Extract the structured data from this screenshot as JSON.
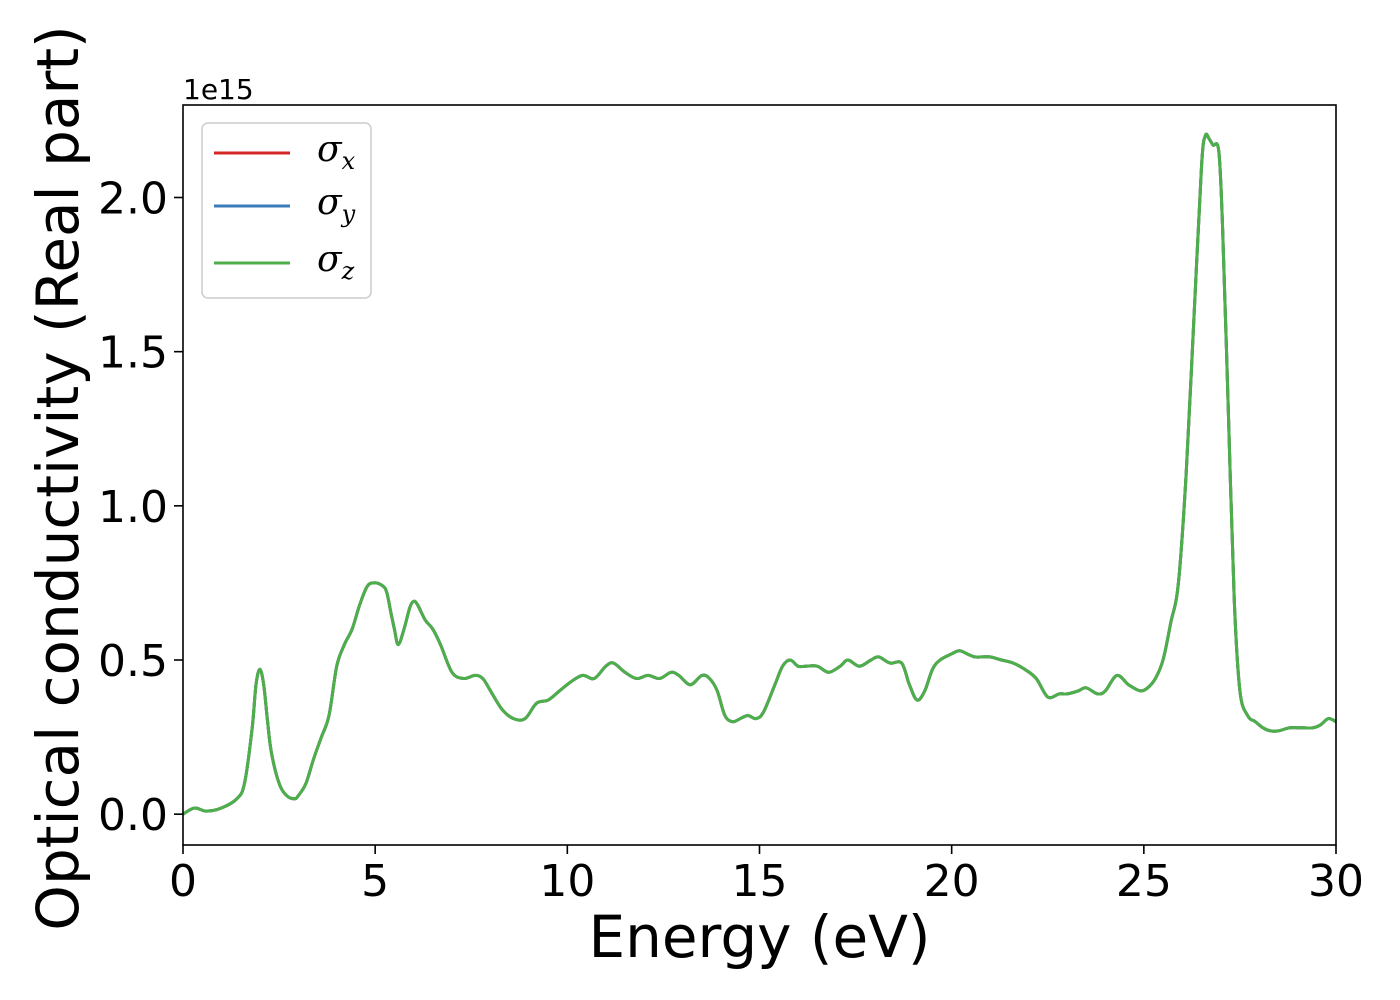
{
  "chart_data": {
    "type": "line",
    "title": "",
    "xlabel": "Energy (eV)",
    "ylabel": "Optical conductivity (Real part)",
    "y_offset_label": "1e15",
    "y_scale_factor": 1000000000000000.0,
    "xlim": [
      0,
      30
    ],
    "ylim": [
      -0.1,
      2.3
    ],
    "xticks": [
      0,
      5,
      10,
      15,
      20,
      25,
      30
    ],
    "xtick_labels": [
      "0",
      "5",
      "10",
      "15",
      "20",
      "25",
      "30"
    ],
    "yticks": [
      0.0,
      0.5,
      1.0,
      1.5,
      2.0
    ],
    "ytick_labels": [
      "0.0",
      "0.5",
      "1.0",
      "1.5",
      "2.0"
    ],
    "grid": false,
    "legend_position": "top-left",
    "x": [
      0,
      0.3,
      0.6,
      1.0,
      1.4,
      1.6,
      1.8,
      1.9,
      2.0,
      2.1,
      2.2,
      2.3,
      2.5,
      2.7,
      2.9,
      3.0,
      3.2,
      3.4,
      3.6,
      3.8,
      4.0,
      4.2,
      4.4,
      4.6,
      4.8,
      5.0,
      5.2,
      5.3,
      5.4,
      5.5,
      5.6,
      5.75,
      5.9,
      6.0,
      6.1,
      6.3,
      6.5,
      6.7,
      7.0,
      7.3,
      7.6,
      7.8,
      8.0,
      8.3,
      8.6,
      8.9,
      9.2,
      9.5,
      9.8,
      10.1,
      10.4,
      10.7,
      11.0,
      11.2,
      11.5,
      11.8,
      12.1,
      12.4,
      12.7,
      12.9,
      13.2,
      13.5,
      13.7,
      13.9,
      14.1,
      14.3,
      14.5,
      14.7,
      14.9,
      15.1,
      15.4,
      15.6,
      15.8,
      16.0,
      16.2,
      16.5,
      16.8,
      17.1,
      17.3,
      17.6,
      17.9,
      18.1,
      18.4,
      18.7,
      18.9,
      19.1,
      19.3,
      19.5,
      19.7,
      20.0,
      20.2,
      20.4,
      20.6,
      20.8,
      21.0,
      21.3,
      21.6,
      21.9,
      22.2,
      22.5,
      22.8,
      23.0,
      23.3,
      23.5,
      23.8,
      24.0,
      24.3,
      24.6,
      24.9,
      25.1,
      25.3,
      25.5,
      25.7,
      25.9,
      26.1,
      26.3,
      26.5,
      26.6,
      26.7,
      26.8,
      26.95,
      27.05,
      27.2,
      27.35,
      27.5,
      27.7,
      27.9,
      28.1,
      28.3,
      28.5,
      28.8,
      29.1,
      29.4,
      29.6,
      29.8,
      30.0
    ],
    "series": [
      {
        "name": "σx",
        "color": "#d62728",
        "values": [
          0.0,
          0.02,
          0.01,
          0.02,
          0.05,
          0.1,
          0.28,
          0.42,
          0.47,
          0.42,
          0.3,
          0.2,
          0.1,
          0.06,
          0.05,
          0.06,
          0.1,
          0.18,
          0.25,
          0.32,
          0.48,
          0.55,
          0.6,
          0.68,
          0.74,
          0.75,
          0.74,
          0.72,
          0.66,
          0.6,
          0.55,
          0.6,
          0.67,
          0.69,
          0.68,
          0.63,
          0.6,
          0.55,
          0.46,
          0.44,
          0.45,
          0.44,
          0.4,
          0.34,
          0.31,
          0.31,
          0.36,
          0.37,
          0.4,
          0.43,
          0.45,
          0.44,
          0.48,
          0.49,
          0.46,
          0.44,
          0.45,
          0.44,
          0.46,
          0.45,
          0.42,
          0.45,
          0.44,
          0.4,
          0.32,
          0.3,
          0.31,
          0.32,
          0.31,
          0.33,
          0.42,
          0.48,
          0.5,
          0.48,
          0.48,
          0.48,
          0.46,
          0.48,
          0.5,
          0.48,
          0.5,
          0.51,
          0.49,
          0.49,
          0.42,
          0.37,
          0.4,
          0.47,
          0.5,
          0.52,
          0.53,
          0.52,
          0.51,
          0.51,
          0.51,
          0.5,
          0.49,
          0.47,
          0.44,
          0.38,
          0.39,
          0.39,
          0.4,
          0.41,
          0.39,
          0.4,
          0.45,
          0.42,
          0.4,
          0.41,
          0.44,
          0.5,
          0.62,
          0.75,
          1.1,
          1.6,
          2.1,
          2.2,
          2.19,
          2.17,
          2.15,
          1.9,
          1.3,
          0.7,
          0.4,
          0.32,
          0.3,
          0.28,
          0.27,
          0.27,
          0.28,
          0.28,
          0.28,
          0.29,
          0.31,
          0.3
        ]
      },
      {
        "name": "σy",
        "color": "#3a7db8",
        "values": [
          0.0,
          0.02,
          0.01,
          0.02,
          0.05,
          0.1,
          0.28,
          0.42,
          0.47,
          0.42,
          0.3,
          0.2,
          0.1,
          0.06,
          0.05,
          0.06,
          0.1,
          0.18,
          0.25,
          0.32,
          0.48,
          0.55,
          0.6,
          0.68,
          0.74,
          0.75,
          0.74,
          0.72,
          0.66,
          0.6,
          0.55,
          0.6,
          0.67,
          0.69,
          0.68,
          0.63,
          0.6,
          0.55,
          0.46,
          0.44,
          0.45,
          0.44,
          0.4,
          0.34,
          0.31,
          0.31,
          0.36,
          0.37,
          0.4,
          0.43,
          0.45,
          0.44,
          0.48,
          0.49,
          0.46,
          0.44,
          0.45,
          0.44,
          0.46,
          0.45,
          0.42,
          0.45,
          0.44,
          0.4,
          0.32,
          0.3,
          0.31,
          0.32,
          0.31,
          0.33,
          0.42,
          0.48,
          0.5,
          0.48,
          0.48,
          0.48,
          0.46,
          0.48,
          0.5,
          0.48,
          0.5,
          0.51,
          0.49,
          0.49,
          0.42,
          0.37,
          0.4,
          0.47,
          0.5,
          0.52,
          0.53,
          0.52,
          0.51,
          0.51,
          0.51,
          0.5,
          0.49,
          0.47,
          0.44,
          0.38,
          0.39,
          0.39,
          0.4,
          0.41,
          0.39,
          0.4,
          0.45,
          0.42,
          0.4,
          0.41,
          0.44,
          0.5,
          0.62,
          0.75,
          1.1,
          1.6,
          2.1,
          2.2,
          2.19,
          2.17,
          2.15,
          1.9,
          1.3,
          0.7,
          0.4,
          0.32,
          0.3,
          0.28,
          0.27,
          0.27,
          0.28,
          0.28,
          0.28,
          0.29,
          0.31,
          0.3
        ]
      },
      {
        "name": "σz",
        "color": "#4daf4a",
        "values": [
          0.0,
          0.02,
          0.01,
          0.02,
          0.05,
          0.1,
          0.28,
          0.42,
          0.47,
          0.42,
          0.3,
          0.2,
          0.1,
          0.06,
          0.05,
          0.06,
          0.1,
          0.18,
          0.25,
          0.32,
          0.48,
          0.55,
          0.6,
          0.68,
          0.74,
          0.75,
          0.74,
          0.72,
          0.66,
          0.6,
          0.55,
          0.6,
          0.67,
          0.69,
          0.68,
          0.63,
          0.6,
          0.55,
          0.46,
          0.44,
          0.45,
          0.44,
          0.4,
          0.34,
          0.31,
          0.31,
          0.36,
          0.37,
          0.4,
          0.43,
          0.45,
          0.44,
          0.48,
          0.49,
          0.46,
          0.44,
          0.45,
          0.44,
          0.46,
          0.45,
          0.42,
          0.45,
          0.44,
          0.4,
          0.32,
          0.3,
          0.31,
          0.32,
          0.31,
          0.33,
          0.42,
          0.48,
          0.5,
          0.48,
          0.48,
          0.48,
          0.46,
          0.48,
          0.5,
          0.48,
          0.5,
          0.51,
          0.49,
          0.49,
          0.42,
          0.37,
          0.4,
          0.47,
          0.5,
          0.52,
          0.53,
          0.52,
          0.51,
          0.51,
          0.51,
          0.5,
          0.49,
          0.47,
          0.44,
          0.38,
          0.39,
          0.39,
          0.4,
          0.41,
          0.39,
          0.4,
          0.45,
          0.42,
          0.4,
          0.41,
          0.44,
          0.5,
          0.62,
          0.75,
          1.1,
          1.6,
          2.1,
          2.2,
          2.19,
          2.17,
          2.15,
          1.9,
          1.3,
          0.7,
          0.4,
          0.32,
          0.3,
          0.28,
          0.27,
          0.27,
          0.28,
          0.28,
          0.28,
          0.29,
          0.31,
          0.3
        ]
      }
    ]
  }
}
